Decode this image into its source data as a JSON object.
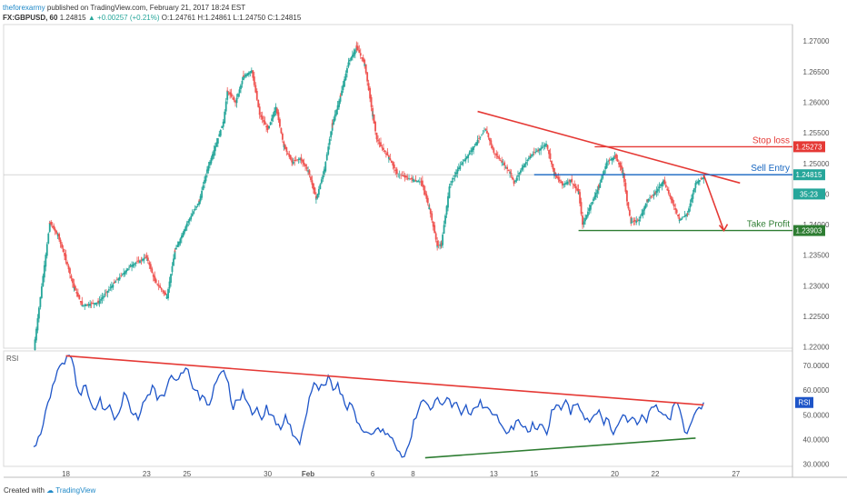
{
  "header": {
    "publisher": "theforexarmy",
    "published_text": "published on TradingView.com, February 21, 2017 18:24 EST",
    "symbol": "FX:GBPUSD, 60",
    "last": "1.24815",
    "change": "+0.00257 (+0.21%)",
    "o": "O:1.24761",
    "h": "H:1.24861",
    "l": "L:1.24750",
    "c": "C:1.24815"
  },
  "footer": {
    "created_with": "Created with",
    "brand": "TradingView"
  },
  "chart_data": [
    {
      "type": "candlestick",
      "pane": "price",
      "y_ticks": [
        "1.27000",
        "1.26500",
        "1.26000",
        "1.25500",
        "1.25000",
        "1.24500",
        "1.24000",
        "1.23500",
        "1.23000",
        "1.22500",
        "1.22000"
      ],
      "ylim": [
        1.2198,
        1.2727
      ],
      "price_labels": [
        {
          "value": 1.25273,
          "text": "1.25273",
          "color": "#e53935"
        },
        {
          "value": 1.24815,
          "text": "1.24815",
          "color": "#26a69a"
        },
        {
          "value": 1.245,
          "text": "35:23",
          "color": "#26a69a"
        },
        {
          "value": 1.23903,
          "text": "1.23903",
          "color": "#2e7d32"
        }
      ],
      "annotations": [
        {
          "text": "Stop loss",
          "value": 1.25273,
          "color": "#e53935"
        },
        {
          "text": "Sell Entry",
          "value": 1.24815,
          "color": "#1565c0"
        },
        {
          "text": "Take Profit",
          "value": 1.23903,
          "color": "#2e7d32"
        }
      ],
      "close_path": [
        [
          0,
          1.2195
        ],
        [
          4,
          1.2403
        ],
        [
          6,
          1.2382
        ],
        [
          8,
          1.2342
        ],
        [
          10,
          1.2297
        ],
        [
          12,
          1.2268
        ],
        [
          16,
          1.2273
        ],
        [
          20,
          1.2305
        ],
        [
          24,
          1.2333
        ],
        [
          28,
          1.2347
        ],
        [
          30,
          1.2308
        ],
        [
          33,
          1.2282
        ],
        [
          35,
          1.2357
        ],
        [
          38,
          1.2402
        ],
        [
          41,
          1.2438
        ],
        [
          43,
          1.249
        ],
        [
          45,
          1.2528
        ],
        [
          47,
          1.2568
        ],
        [
          48,
          1.2618
        ],
        [
          50,
          1.26
        ],
        [
          52,
          1.2642
        ],
        [
          54,
          1.2652
        ],
        [
          56,
          1.258
        ],
        [
          58,
          1.2555
        ],
        [
          60,
          1.2592
        ],
        [
          62,
          1.2528
        ],
        [
          64,
          1.2502
        ],
        [
          66,
          1.2508
        ],
        [
          68,
          1.2488
        ],
        [
          70,
          1.2442
        ],
        [
          72,
          1.249
        ],
        [
          74,
          1.2565
        ],
        [
          76,
          1.261
        ],
        [
          78,
          1.2665
        ],
        [
          80,
          1.269
        ],
        [
          82,
          1.2662
        ],
        [
          84,
          1.2578
        ],
        [
          85,
          1.254
        ],
        [
          86,
          1.2528
        ],
        [
          88,
          1.251
        ],
        [
          90,
          1.2483
        ],
        [
          92,
          1.2478
        ],
        [
          94,
          1.2473
        ],
        [
          96,
          1.247
        ],
        [
          98,
          1.2428
        ],
        [
          100,
          1.2365
        ],
        [
          101,
          1.2368
        ],
        [
          103,
          1.2462
        ],
        [
          105,
          1.249
        ],
        [
          108,
          1.2518
        ],
        [
          110,
          1.2538
        ],
        [
          112,
          1.2555
        ],
        [
          114,
          1.2518
        ],
        [
          116,
          1.2502
        ],
        [
          118,
          1.2485
        ],
        [
          119,
          1.2468
        ],
        [
          121,
          1.2493
        ],
        [
          123,
          1.2512
        ],
        [
          125,
          1.2522
        ],
        [
          127,
          1.2532
        ],
        [
          129,
          1.2482
        ],
        [
          131,
          1.2465
        ],
        [
          133,
          1.2473
        ],
        [
          135,
          1.2452
        ],
        [
          136,
          1.24
        ],
        [
          138,
          1.2432
        ],
        [
          140,
          1.2462
        ],
        [
          142,
          1.2502
        ],
        [
          144,
          1.2512
        ],
        [
          146,
          1.2485
        ],
        [
          147,
          1.2438
        ],
        [
          148,
          1.2403
        ],
        [
          150,
          1.2408
        ],
        [
          152,
          1.244
        ],
        [
          154,
          1.2452
        ],
        [
          156,
          1.2472
        ],
        [
          158,
          1.244
        ],
        [
          160,
          1.2408
        ],
        [
          162,
          1.2418
        ],
        [
          164,
          1.2468
        ],
        [
          166,
          1.2478
        ]
      ]
    },
    {
      "type": "line",
      "pane": "rsi",
      "series_label": "RSI",
      "y_ticks": [
        "70.0000",
        "60.0000",
        "50.0000",
        "40.0000",
        "30.0000"
      ],
      "ylim": [
        29,
        76
      ],
      "values": [
        37,
        41,
        46,
        55,
        62,
        68,
        71,
        74,
        73,
        62,
        58,
        62,
        55,
        52,
        57,
        52,
        54,
        48,
        51,
        59,
        55,
        50,
        48,
        55,
        58,
        62,
        56,
        58,
        61,
        66,
        64,
        67,
        69,
        64,
        60,
        56,
        57,
        54,
        62,
        66,
        68,
        63,
        52,
        56,
        60,
        55,
        50,
        53,
        48,
        54,
        50,
        46,
        44,
        50,
        46,
        41,
        38,
        47,
        57,
        63,
        60,
        62,
        66,
        60,
        63,
        58,
        52,
        54,
        47,
        44,
        43,
        42,
        44,
        43,
        42,
        41,
        38,
        35,
        33,
        38,
        48,
        52,
        56,
        54,
        53,
        57,
        54,
        57,
        53,
        55,
        50,
        54,
        50,
        53,
        56,
        53,
        52,
        50,
        47,
        44,
        43,
        44,
        48,
        45,
        43,
        47,
        44,
        46,
        42,
        52,
        54,
        52,
        56,
        50,
        54,
        52,
        48,
        47,
        50,
        52,
        46,
        48,
        42,
        46,
        50,
        47,
        49,
        46,
        50,
        47,
        53,
        54,
        51,
        50,
        48,
        55,
        52,
        43,
        45,
        50,
        53,
        55
      ],
      "trendlines": [
        {
          "from": [
            8,
            74
          ],
          "to": [
            166,
            54
          ],
          "color": "#e53935"
        },
        {
          "from": [
            97,
            32.5
          ],
          "to": [
            164,
            40.5
          ],
          "color": "#2e7d32"
        }
      ]
    }
  ],
  "x_axis": {
    "ticks": [
      {
        "label": "18",
        "i": 8
      },
      {
        "label": "23",
        "i": 28
      },
      {
        "label": "25",
        "i": 38
      },
      {
        "label": "30",
        "i": 58
      },
      {
        "label": "Feb",
        "i": 68
      },
      {
        "label": "6",
        "i": 84
      },
      {
        "label": "8",
        "i": 94
      },
      {
        "label": "13",
        "i": 114
      },
      {
        "label": "15",
        "i": 124
      },
      {
        "label": "20",
        "i": 144
      },
      {
        "label": "22",
        "i": 154
      },
      {
        "label": "27",
        "i": 174
      }
    ],
    "i_range": [
      0,
      176
    ]
  }
}
